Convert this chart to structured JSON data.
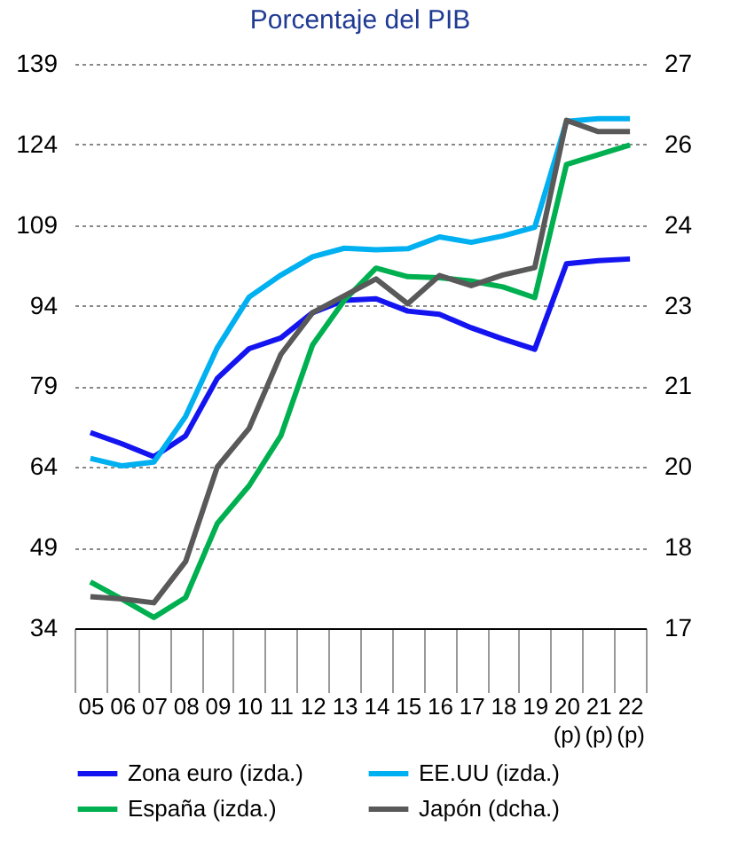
{
  "chart_data": {
    "type": "line",
    "title": "Porcentaje del PIB",
    "categories": [
      "05",
      "06",
      "07",
      "08",
      "09",
      "10",
      "11",
      "12",
      "13",
      "14",
      "15",
      "16",
      "17",
      "18",
      "19",
      "20 (p)",
      "21 (p)",
      "22 (p)"
    ],
    "series": [
      {
        "name": "Zona euro (izda.)",
        "color": "#1414f0",
        "values": [
          70.4,
          68.3,
          65.9,
          69.8,
          80.5,
          86.0,
          88.0,
          92.7,
          95.0,
          95.3,
          93.0,
          92.4,
          89.9,
          87.8,
          85.9,
          101.8,
          102.4,
          102.7
        ]
      },
      {
        "name": "EE.UU (izda.)",
        "color": "#00b0f0",
        "values": [
          65.6,
          64.2,
          64.9,
          73.4,
          86.2,
          95.6,
          99.7,
          103.1,
          104.7,
          104.4,
          104.6,
          106.8,
          105.8,
          107.0,
          108.6,
          128.3,
          128.8,
          128.8
        ]
      },
      {
        "name": "España (izda.)",
        "color": "#00b050",
        "values": [
          42.6,
          39.4,
          36.0,
          39.7,
          53.5,
          60.5,
          69.8,
          86.7,
          95.0,
          101.0,
          99.4,
          99.2,
          98.6,
          97.5,
          95.5,
          120.3,
          122.1,
          123.9
        ]
      },
      {
        "name": "Japón (dcha.)",
        "color": "#595959",
        "axis": "y2",
        "values": [
          17.56,
          17.52,
          17.45,
          18.18,
          19.86,
          20.54,
          21.85,
          22.59,
          22.89,
          23.19,
          22.75,
          23.25,
          23.07,
          23.26,
          23.39,
          26.0,
          25.8,
          25.8
        ]
      }
    ],
    "ylim": [
      34,
      139
    ],
    "yticks": [
      34,
      49,
      64,
      79,
      94,
      109,
      124,
      139
    ],
    "y2lim": [
      17,
      27
    ],
    "y2ticks": [
      17,
      {
        "value": 18.43,
        "label": "18"
      },
      {
        "value": 19.86,
        "label": "20"
      },
      {
        "value": 21.29,
        "label": "21"
      },
      {
        "value": 22.71,
        "label": "23"
      },
      {
        "value": 24.14,
        "label": "24"
      },
      {
        "value": 25.57,
        "label": "26"
      },
      27
    ],
    "grid": "y",
    "legend": "bottom",
    "line_style": "solid"
  }
}
